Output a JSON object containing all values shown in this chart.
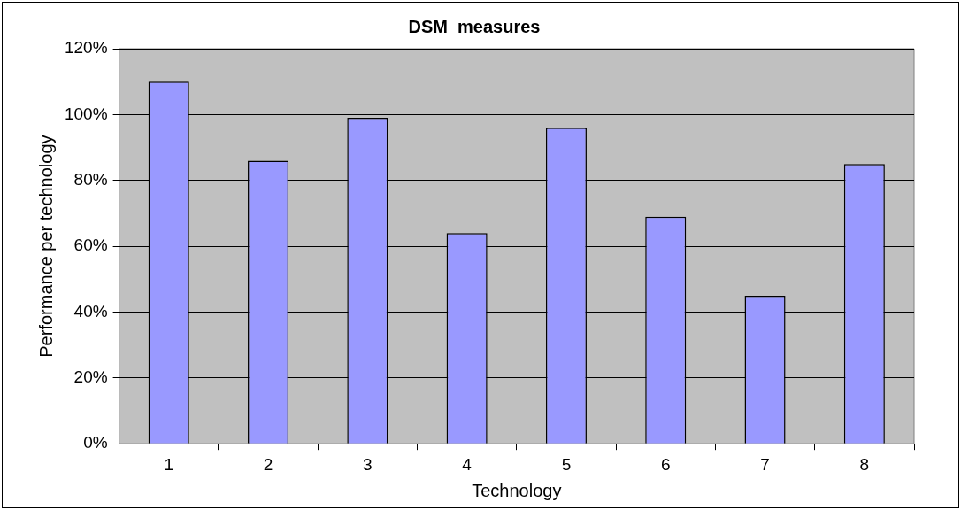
{
  "chart_data": {
    "type": "bar",
    "title": "DSM  measures",
    "xlabel": "Technology",
    "ylabel": "Performance per technology",
    "categories": [
      "1",
      "2",
      "3",
      "4",
      "5",
      "6",
      "7",
      "8"
    ],
    "values": [
      110,
      86,
      99,
      64,
      96,
      69,
      45,
      85
    ],
    "color": "#9999ff",
    "ylim": [
      0,
      120
    ],
    "yticks": [
      {
        "value": 0,
        "label": "0%"
      },
      {
        "value": 20,
        "label": "20%"
      },
      {
        "value": 40,
        "label": "40%"
      },
      {
        "value": 60,
        "label": "60%"
      },
      {
        "value": 80,
        "label": "80%"
      },
      {
        "value": 100,
        "label": "100%"
      },
      {
        "value": 120,
        "label": "120%"
      }
    ],
    "grid": "y",
    "legend": false
  }
}
